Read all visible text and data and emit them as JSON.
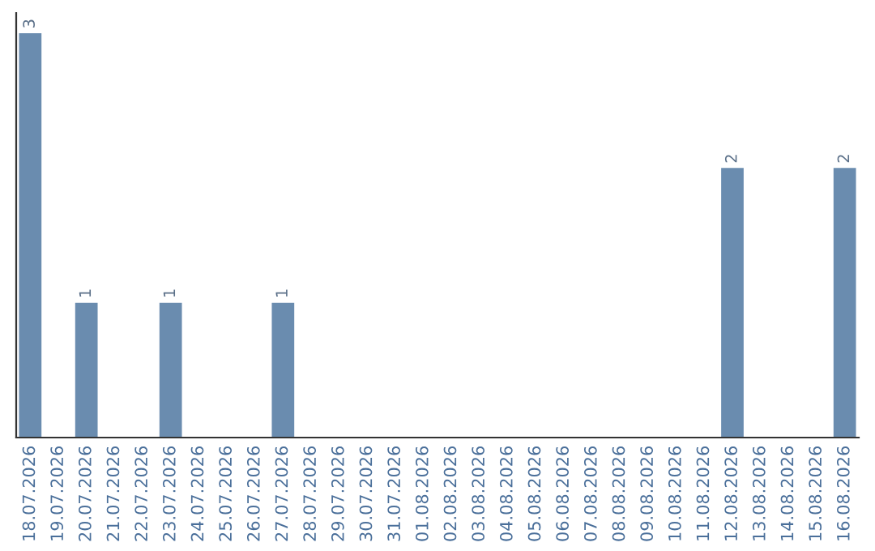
{
  "chart_data": {
    "type": "bar",
    "color": "#6a8caf",
    "categories": [
      "18.07.2026",
      "19.07.2026",
      "20.07.2026",
      "21.07.2026",
      "22.07.2026",
      "23.07.2026",
      "24.07.2026",
      "25.07.2026",
      "26.07.2026",
      "27.07.2026",
      "28.07.2026",
      "29.07.2026",
      "30.07.2026",
      "31.07.2026",
      "01.08.2026",
      "02.08.2026",
      "03.08.2026",
      "04.08.2026",
      "05.08.2026",
      "06.08.2026",
      "07.08.2026",
      "08.08.2026",
      "09.08.2026",
      "10.08.2026",
      "11.08.2026",
      "12.08.2026",
      "13.08.2026",
      "14.08.2026",
      "15.08.2026",
      "16.08.2026"
    ],
    "values": [
      3,
      0,
      1,
      0,
      0,
      1,
      0,
      0,
      0,
      1,
      0,
      0,
      0,
      0,
      0,
      0,
      0,
      0,
      0,
      0,
      0,
      0,
      0,
      0,
      0,
      2,
      0,
      0,
      0,
      2
    ],
    "value_labels": [
      "3",
      null,
      "1",
      null,
      null,
      "1",
      null,
      null,
      null,
      "1",
      null,
      null,
      null,
      null,
      null,
      null,
      null,
      null,
      null,
      null,
      null,
      null,
      null,
      null,
      null,
      "2",
      null,
      null,
      null,
      "2"
    ],
    "tick_labels": "x",
    "grid": false
  }
}
